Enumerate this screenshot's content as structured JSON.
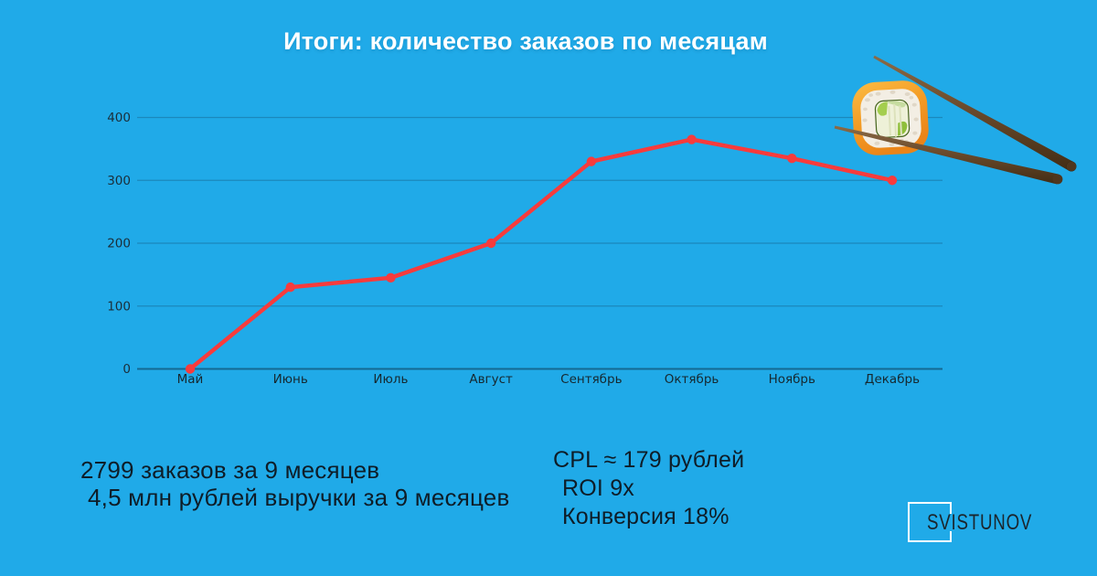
{
  "title": "Итоги: количество заказов по месяцам",
  "chart_data": {
    "type": "line",
    "title": "Итоги: количество заказов по месяцам",
    "categories": [
      "Май",
      "Июнь",
      "Июль",
      "Август",
      "Сентябрь",
      "Октябрь",
      "Ноябрь",
      "Декабрь"
    ],
    "series": [
      {
        "name": "Количество заказов",
        "values": [
          0,
          130,
          145,
          200,
          330,
          365,
          335,
          300
        ]
      }
    ],
    "xlabel": "",
    "ylabel": "",
    "ylim": [
      0,
      400
    ],
    "yticks": [
      0,
      100,
      200,
      300,
      400
    ],
    "grid": true,
    "legend": false,
    "line_color": "#F83B3C",
    "marker": "circle"
  },
  "stats_left": {
    "line1": "2799 заказов за 9 месяцев",
    "line2": "4,5 млн рублей выручки за 9 месяцев"
  },
  "stats_right": {
    "line1": "CPL ≈ 179 рублей",
    "line2": "ROI 9x",
    "line3": "Конверсия 18%"
  },
  "logo": {
    "text": "SVISTUNOV"
  },
  "colors": {
    "background": "#20AAE8",
    "line": "#F83B3C",
    "title_text": "#FFFFFF",
    "dark_text": "#0E1D28",
    "gridline": "rgba(13,50,75,0.28)",
    "axis_line": "rgba(13,50,75,0.55)"
  }
}
